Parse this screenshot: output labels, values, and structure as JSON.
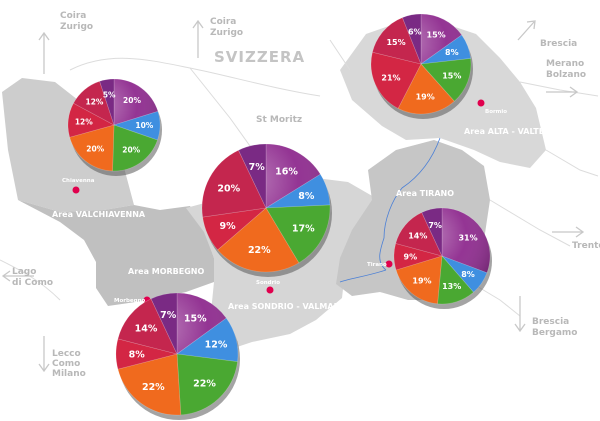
{
  "background_labels": {
    "country": "SVIZZERA",
    "coira_zurigo_left": [
      "Coira",
      "Zurigo"
    ],
    "coira_zurigo_center": [
      "Coira",
      "Zurigo"
    ],
    "st_moritz": "St Moritz",
    "merano_bolzano": [
      "Merano",
      "Bolzano"
    ],
    "brescia_bergamo_top": "Brescia",
    "lago_di_como": [
      "Lago",
      "di Como"
    ],
    "lecco_como_milano": [
      "Lecco",
      "Como",
      "Milano"
    ],
    "trento": "Trento",
    "brescia_bergamo_bottom": [
      "Brescia",
      "Bergamo"
    ]
  },
  "areas": {
    "valchiavenna": "Area VALCHIAVENNA",
    "morbegno": "Area MORBEGNO",
    "sondrio": "Area SONDRIO - VALMALENCO",
    "tirano": "Area TIRANO",
    "alta": "Area ALTA - VALTELLINA"
  },
  "towns": {
    "chiavenna": "Chiavenna",
    "morbegno": "Morbegno",
    "sondrio": "Sondrio",
    "tirano": "Tirano",
    "bormio": "Bormio"
  },
  "colors": {
    "purple": "#8e2a8e",
    "blue": "#3f8fe0",
    "green": "#4aa832",
    "orange": "#f06a1e",
    "red": "#d32644",
    "region": "#cfcfcf",
    "region_dark": "#b9b9b9",
    "town_dot": "#e0004d"
  },
  "pies": [
    {
      "id": "valchiavenna",
      "labels": [
        "20%",
        "10%",
        "20%",
        "20%",
        "12%",
        "12%",
        "5%"
      ]
    },
    {
      "id": "sondrio",
      "labels": [
        "16%",
        "8%",
        "17%",
        "22%",
        "9%",
        "20%",
        "7%"
      ]
    },
    {
      "id": "morbegno",
      "labels": [
        "15%",
        "12%",
        "22%",
        "22%",
        "8%",
        "14%",
        "7%"
      ]
    },
    {
      "id": "tirano",
      "labels": [
        "31%",
        "8%",
        "13%",
        "19%",
        "9%",
        "14%",
        "7%"
      ]
    },
    {
      "id": "alta",
      "labels": [
        "15%",
        "8%",
        "15%",
        "19%",
        "21%",
        "15%",
        "6%"
      ]
    }
  ]
}
